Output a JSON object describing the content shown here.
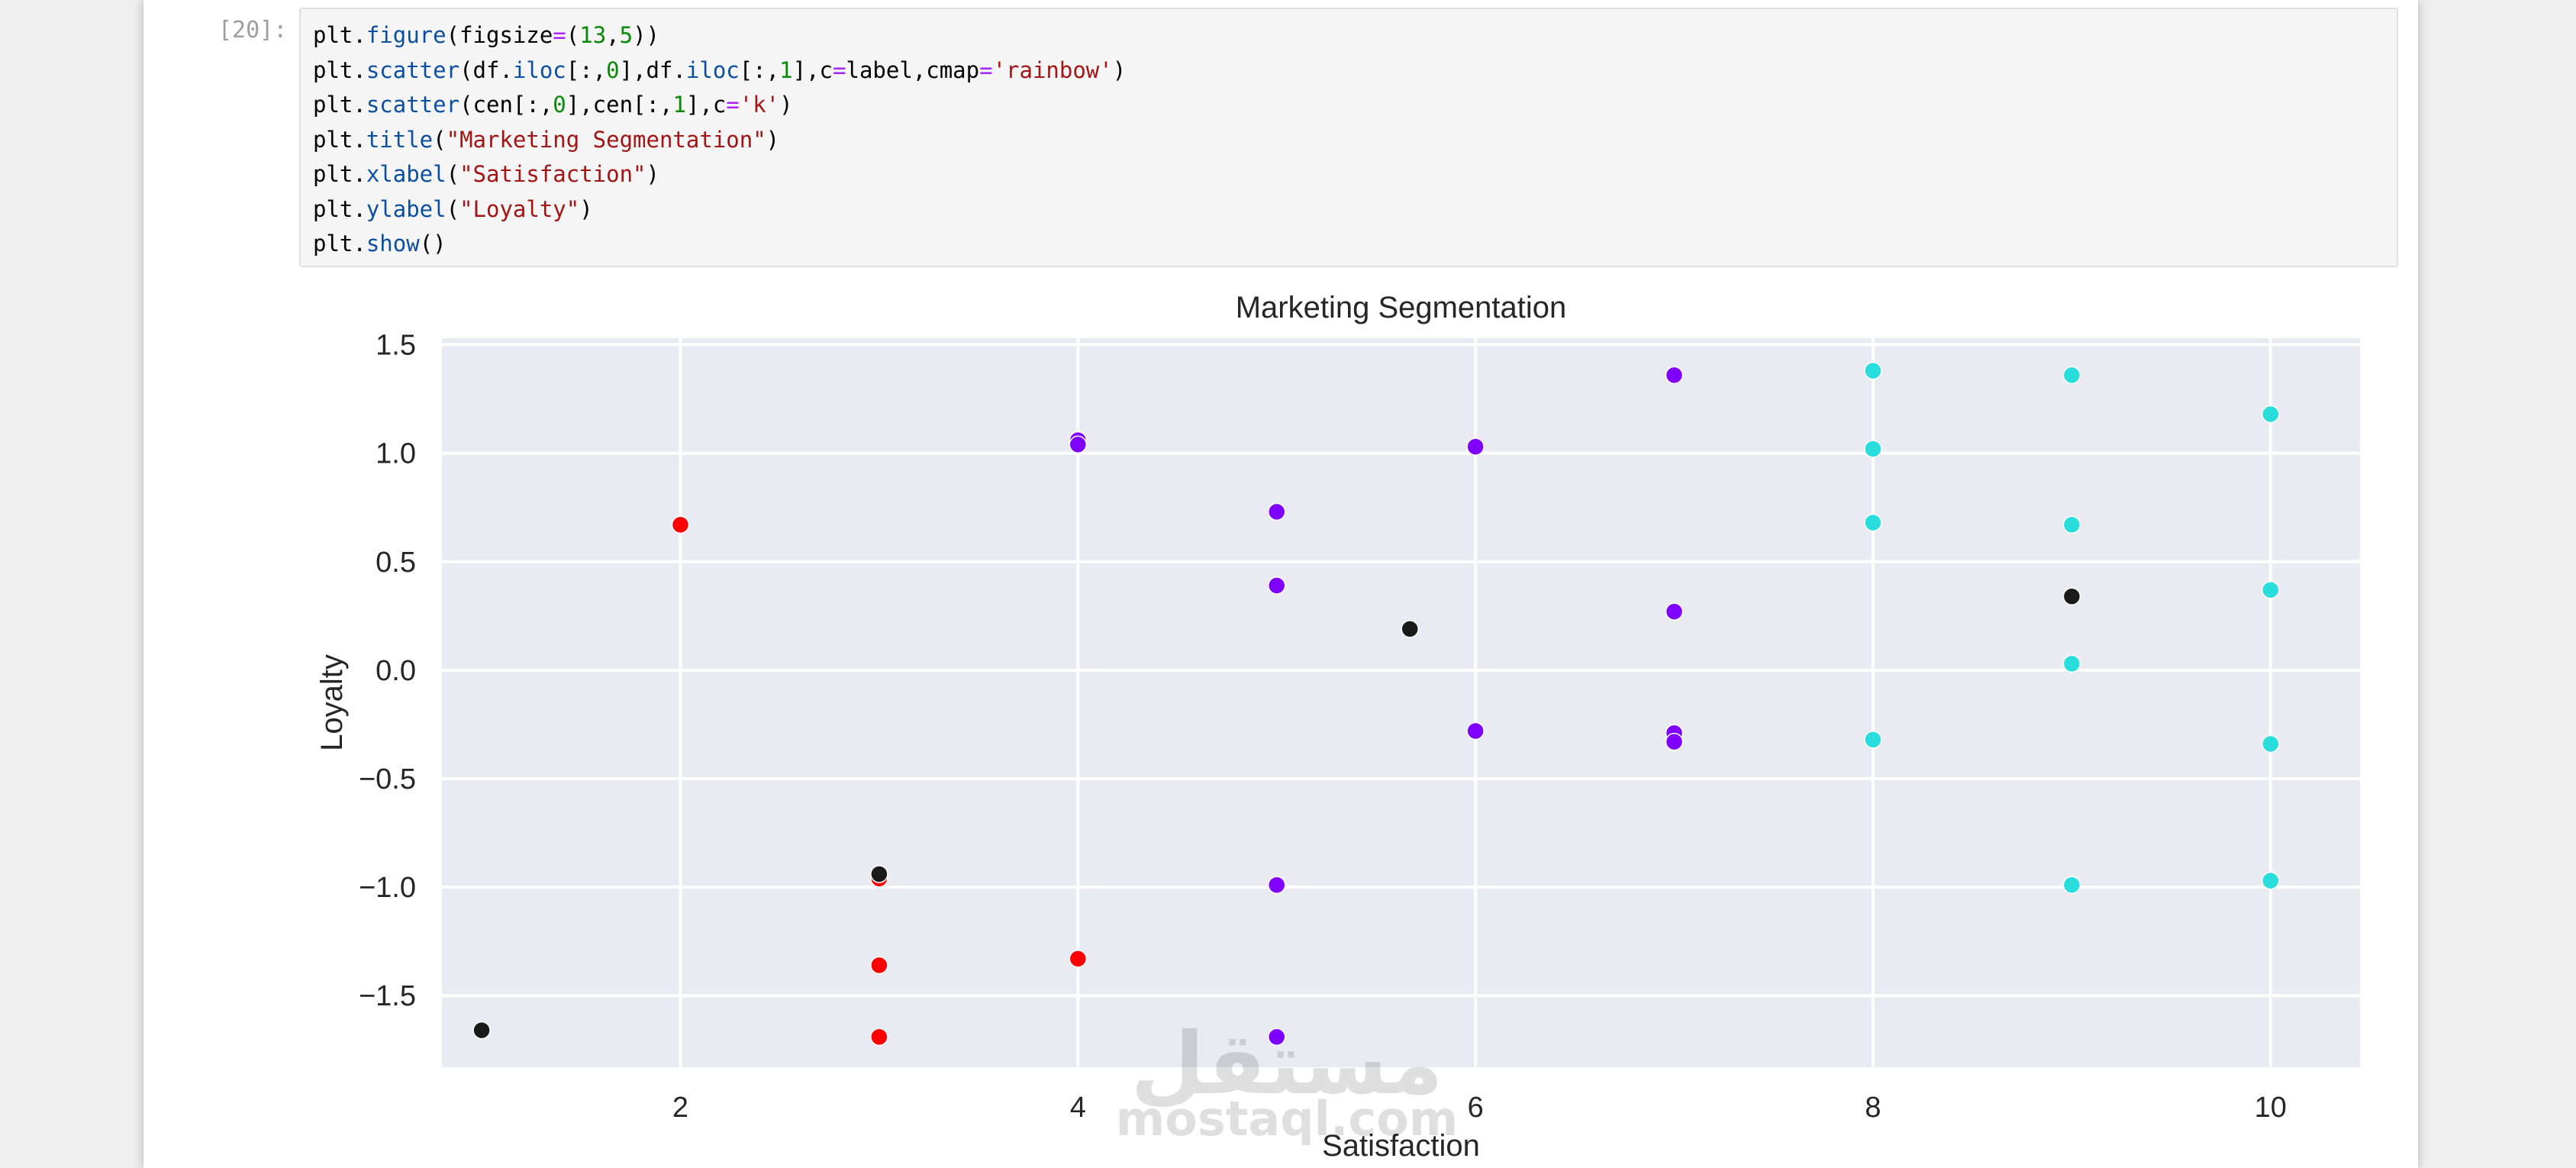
{
  "cell": {
    "prompt": "[20]:",
    "lines": [
      [
        {
          "t": "plt."
        },
        {
          "t": "figure",
          "c": "fn"
        },
        {
          "t": "(figsize"
        },
        {
          "t": "=",
          "c": "op"
        },
        {
          "t": "("
        },
        {
          "t": "13",
          "c": "num"
        },
        {
          "t": ","
        },
        {
          "t": "5",
          "c": "num"
        },
        {
          "t": "))"
        }
      ],
      [
        {
          "t": "plt."
        },
        {
          "t": "scatter",
          "c": "fn"
        },
        {
          "t": "(df."
        },
        {
          "t": "iloc",
          "c": "fn"
        },
        {
          "t": "[:,"
        },
        {
          "t": "0",
          "c": "num"
        },
        {
          "t": "],df."
        },
        {
          "t": "iloc",
          "c": "fn"
        },
        {
          "t": "[:,"
        },
        {
          "t": "1",
          "c": "num"
        },
        {
          "t": "],c"
        },
        {
          "t": "=",
          "c": "op"
        },
        {
          "t": "label,cmap"
        },
        {
          "t": "=",
          "c": "op"
        },
        {
          "t": "'rainbow'",
          "c": "str"
        },
        {
          "t": ")"
        }
      ],
      [
        {
          "t": "plt."
        },
        {
          "t": "scatter",
          "c": "fn"
        },
        {
          "t": "(cen[:,"
        },
        {
          "t": "0",
          "c": "num"
        },
        {
          "t": "],cen[:,"
        },
        {
          "t": "1",
          "c": "num"
        },
        {
          "t": "],c"
        },
        {
          "t": "=",
          "c": "op"
        },
        {
          "t": "'k'",
          "c": "str"
        },
        {
          "t": ")"
        }
      ],
      [
        {
          "t": "plt."
        },
        {
          "t": "title",
          "c": "fn"
        },
        {
          "t": "("
        },
        {
          "t": "\"Marketing Segmentation\"",
          "c": "str"
        },
        {
          "t": ")"
        }
      ],
      [
        {
          "t": "plt."
        },
        {
          "t": "xlabel",
          "c": "fn"
        },
        {
          "t": "("
        },
        {
          "t": "\"Satisfaction\"",
          "c": "str"
        },
        {
          "t": ")"
        }
      ],
      [
        {
          "t": "plt."
        },
        {
          "t": "ylabel",
          "c": "fn"
        },
        {
          "t": "("
        },
        {
          "t": "\"Loyalty\"",
          "c": "str"
        },
        {
          "t": ")"
        }
      ],
      [
        {
          "t": "plt."
        },
        {
          "t": "show",
          "c": "fn"
        },
        {
          "t": "()"
        }
      ]
    ]
  },
  "watermark": {
    "arabic": "مستقل",
    "latin": "mostaql.com"
  },
  "chart_data": {
    "type": "scatter",
    "title": "Marketing Segmentation",
    "xlabel": "Satisfaction",
    "ylabel": "Loyalty",
    "xlim": [
      0.8,
      10.45
    ],
    "ylim": [
      -1.83,
      1.53
    ],
    "xticks": [
      "2",
      "4",
      "6",
      "8",
      "10"
    ],
    "yticks": [
      "1.5",
      "1.0",
      "0.5",
      "0.0",
      "−0.5",
      "−1.0",
      "−1.5"
    ],
    "grid": true,
    "background": "#eaeaf2",
    "colors": {
      "cluster_red": "#ff0000",
      "cluster_purple": "#8000ff",
      "cluster_cyan": "#2adddd",
      "centroid": "#1a1a1a"
    },
    "series": [
      {
        "color": "#ff0000",
        "points": [
          [
            2,
            0.67
          ],
          [
            3,
            -0.96
          ],
          [
            3,
            -1.36
          ],
          [
            3,
            -1.69
          ],
          [
            4,
            -1.33
          ]
        ]
      },
      {
        "color": "#8000ff",
        "points": [
          [
            4,
            1.06
          ],
          [
            4,
            1.04
          ],
          [
            5,
            0.73
          ],
          [
            5,
            0.39
          ],
          [
            5,
            -0.99
          ],
          [
            5,
            -1.69
          ],
          [
            6,
            1.03
          ],
          [
            6,
            -0.28
          ],
          [
            7,
            1.36
          ],
          [
            7,
            0.27
          ],
          [
            7,
            -0.29
          ],
          [
            7,
            -0.33
          ]
        ]
      },
      {
        "color": "#2adddd",
        "points": [
          [
            8,
            1.38
          ],
          [
            8,
            1.02
          ],
          [
            8,
            0.68
          ],
          [
            8,
            -0.32
          ],
          [
            9,
            1.36
          ],
          [
            9,
            0.67
          ],
          [
            9,
            0.03
          ],
          [
            9,
            -0.99
          ],
          [
            10,
            1.18
          ],
          [
            10,
            0.37
          ],
          [
            10,
            -0.34
          ],
          [
            10,
            -0.97
          ]
        ]
      },
      {
        "color": "#1a1a1a",
        "points": [
          [
            1,
            -1.66
          ],
          [
            3,
            -0.94
          ],
          [
            5.67,
            0.19
          ],
          [
            9,
            0.34
          ]
        ]
      }
    ]
  }
}
